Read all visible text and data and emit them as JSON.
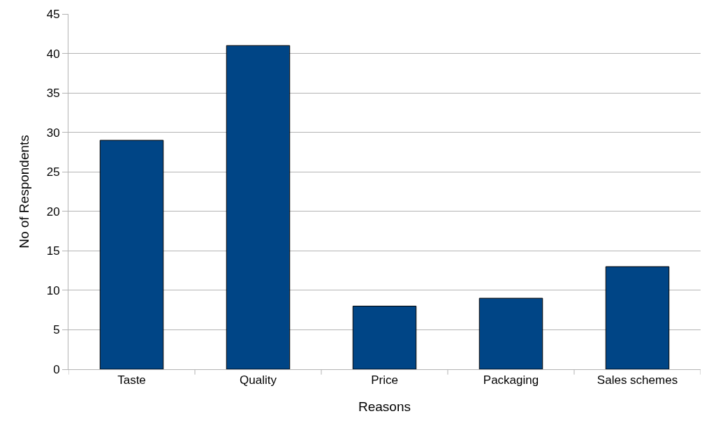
{
  "chart_data": {
    "type": "bar",
    "xlabel": "Reasons",
    "ylabel": "No of Respondents",
    "categories": [
      "Taste",
      "Quality",
      "Price",
      "Packaging",
      "Sales schemes"
    ],
    "values": [
      29,
      41,
      8,
      9,
      13
    ],
    "color": "#004586",
    "ylim": [
      0,
      45
    ],
    "yticks": [
      0,
      5,
      10,
      15,
      20,
      25,
      30,
      35,
      40,
      45
    ],
    "grid": "y"
  }
}
